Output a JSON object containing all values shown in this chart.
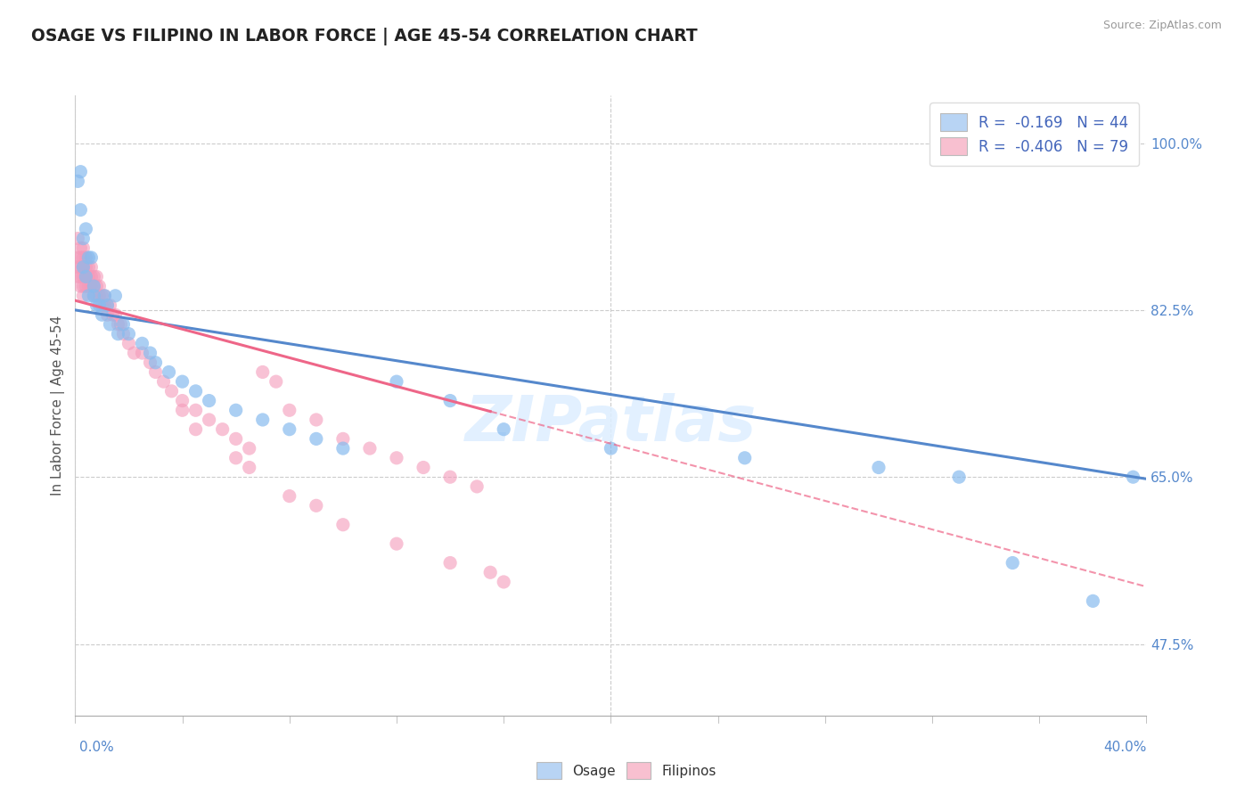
{
  "title": "OSAGE VS FILIPINO IN LABOR FORCE | AGE 45-54 CORRELATION CHART",
  "source": "Source: ZipAtlas.com",
  "ylabel": "In Labor Force | Age 45-54",
  "ytick_labels": [
    "100.0%",
    "82.5%",
    "65.0%",
    "47.5%"
  ],
  "ytick_values": [
    1.0,
    0.825,
    0.65,
    0.475
  ],
  "xmin": 0.0,
  "xmax": 0.4,
  "ymin": 0.4,
  "ymax": 1.05,
  "legend_osage_R": "-0.169",
  "legend_osage_N": "44",
  "legend_filipino_R": "-0.406",
  "legend_filipino_N": "79",
  "osage_color": "#88bbee",
  "osage_color_light": "#b8d4f4",
  "filipino_color": "#f49aba",
  "filipino_color_light": "#f8c0d0",
  "trend_osage_color": "#5588cc",
  "trend_filipino_color": "#ee6688",
  "background_color": "#ffffff",
  "title_color": "#222222",
  "source_color": "#999999",
  "axis_label_color": "#5588cc",
  "osage_x": [
    0.001,
    0.002,
    0.002,
    0.003,
    0.003,
    0.004,
    0.004,
    0.005,
    0.005,
    0.006,
    0.007,
    0.007,
    0.008,
    0.009,
    0.01,
    0.011,
    0.012,
    0.013,
    0.015,
    0.016,
    0.018,
    0.02,
    0.025,
    0.028,
    0.03,
    0.035,
    0.04,
    0.045,
    0.05,
    0.06,
    0.07,
    0.08,
    0.09,
    0.1,
    0.12,
    0.14,
    0.16,
    0.2,
    0.25,
    0.3,
    0.33,
    0.35,
    0.38,
    0.395
  ],
  "osage_y": [
    0.96,
    0.97,
    0.93,
    0.9,
    0.87,
    0.91,
    0.86,
    0.88,
    0.84,
    0.88,
    0.85,
    0.84,
    0.83,
    0.83,
    0.82,
    0.84,
    0.83,
    0.81,
    0.84,
    0.8,
    0.81,
    0.8,
    0.79,
    0.78,
    0.77,
    0.76,
    0.75,
    0.74,
    0.73,
    0.72,
    0.71,
    0.7,
    0.69,
    0.68,
    0.75,
    0.73,
    0.7,
    0.68,
    0.67,
    0.66,
    0.65,
    0.56,
    0.52,
    0.65
  ],
  "filipino_x": [
    0.001,
    0.001,
    0.001,
    0.001,
    0.002,
    0.002,
    0.002,
    0.002,
    0.002,
    0.003,
    0.003,
    0.003,
    0.003,
    0.003,
    0.003,
    0.004,
    0.004,
    0.004,
    0.004,
    0.005,
    0.005,
    0.005,
    0.006,
    0.006,
    0.006,
    0.007,
    0.007,
    0.007,
    0.008,
    0.008,
    0.008,
    0.009,
    0.009,
    0.01,
    0.01,
    0.011,
    0.011,
    0.012,
    0.012,
    0.013,
    0.014,
    0.015,
    0.016,
    0.017,
    0.018,
    0.02,
    0.022,
    0.025,
    0.028,
    0.03,
    0.033,
    0.036,
    0.04,
    0.045,
    0.05,
    0.055,
    0.06,
    0.065,
    0.07,
    0.075,
    0.08,
    0.09,
    0.1,
    0.11,
    0.12,
    0.13,
    0.14,
    0.15,
    0.04,
    0.045,
    0.06,
    0.065,
    0.08,
    0.09,
    0.1,
    0.12,
    0.14,
    0.155,
    0.16
  ],
  "filipino_y": [
    0.9,
    0.88,
    0.87,
    0.86,
    0.89,
    0.88,
    0.87,
    0.86,
    0.85,
    0.89,
    0.88,
    0.87,
    0.86,
    0.85,
    0.84,
    0.88,
    0.87,
    0.86,
    0.85,
    0.87,
    0.86,
    0.85,
    0.87,
    0.86,
    0.85,
    0.86,
    0.85,
    0.84,
    0.86,
    0.85,
    0.84,
    0.85,
    0.84,
    0.84,
    0.83,
    0.84,
    0.83,
    0.83,
    0.82,
    0.83,
    0.82,
    0.82,
    0.81,
    0.81,
    0.8,
    0.79,
    0.78,
    0.78,
    0.77,
    0.76,
    0.75,
    0.74,
    0.73,
    0.72,
    0.71,
    0.7,
    0.69,
    0.68,
    0.76,
    0.75,
    0.72,
    0.71,
    0.69,
    0.68,
    0.67,
    0.66,
    0.65,
    0.64,
    0.72,
    0.7,
    0.67,
    0.66,
    0.63,
    0.62,
    0.6,
    0.58,
    0.56,
    0.55,
    0.54
  ],
  "osage_trend_x0": 0.0,
  "osage_trend_y0": 0.825,
  "osage_trend_x1": 0.4,
  "osage_trend_y1": 0.648,
  "filipino_trend_x0": 0.0,
  "filipino_trend_y0": 0.835,
  "filipino_trend_x1": 0.4,
  "filipino_trend_y1": 0.535,
  "filipino_solid_xend": 0.155,
  "watermark": "ZIPatlas"
}
